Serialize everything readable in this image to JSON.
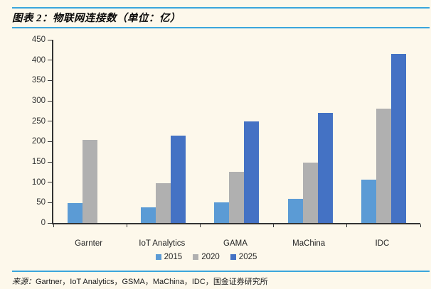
{
  "page": {
    "title": "图表 2：物联网连接数（单位：亿）",
    "footer": {
      "prefix": "来源：",
      "sources": "Gartner，IoT Analytics，GSMA，MaChina，IDC，",
      "org": "国金证券研究所"
    }
  },
  "colors": {
    "background": "#FDF8EB",
    "accent_rule": "#3BA5DC",
    "axis": "#333333",
    "series_2015": "#5B9BD5",
    "series_2020": "#B0B0B0",
    "series_2025": "#4472C4"
  },
  "chart_data": {
    "type": "bar",
    "title": "图表 2：物联网连接数（单位：亿）",
    "categories": [
      "Garnter",
      "IoT Analytics",
      "GAMA",
      "MaChina",
      "IDC"
    ],
    "series": [
      {
        "name": "2015",
        "color": "#5B9BD5",
        "values": [
          49,
          38,
          51,
          59,
          106
        ]
      },
      {
        "name": "2020",
        "color": "#B0B0B0",
        "values": [
          204,
          98,
          126,
          148,
          281
        ]
      },
      {
        "name": "2025",
        "color": "#4472C4",
        "values": [
          null,
          214,
          250,
          271,
          416
        ]
      }
    ],
    "xlabel": "",
    "ylabel": "",
    "ylim": [
      0,
      450
    ],
    "yticks": [
      0,
      50,
      100,
      150,
      200,
      250,
      300,
      350,
      400,
      450
    ],
    "grid": false,
    "legend_position": "bottom-center"
  }
}
